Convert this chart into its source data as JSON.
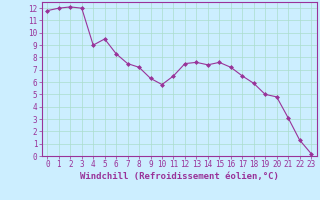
{
  "x": [
    0,
    1,
    2,
    3,
    4,
    5,
    6,
    7,
    8,
    9,
    10,
    11,
    12,
    13,
    14,
    15,
    16,
    17,
    18,
    19,
    20,
    21,
    22,
    23
  ],
  "y": [
    11.8,
    12.0,
    12.1,
    12.0,
    9.0,
    9.5,
    8.3,
    7.5,
    7.2,
    6.3,
    5.8,
    6.5,
    7.5,
    7.6,
    7.4,
    7.6,
    7.2,
    6.5,
    5.9,
    5.0,
    4.8,
    3.1,
    1.3,
    0.2
  ],
  "xlabel": "Windchill (Refroidissement éolien,°C)",
  "xlim": [
    -0.5,
    23.5
  ],
  "ylim": [
    0,
    12.5
  ],
  "yticks": [
    0,
    1,
    2,
    3,
    4,
    5,
    6,
    7,
    8,
    9,
    10,
    11,
    12
  ],
  "xticks": [
    0,
    1,
    2,
    3,
    4,
    5,
    6,
    7,
    8,
    9,
    10,
    11,
    12,
    13,
    14,
    15,
    16,
    17,
    18,
    19,
    20,
    21,
    22,
    23
  ],
  "line_color": "#993399",
  "marker": "D",
  "marker_size": 2,
  "bg_color": "#cceeff",
  "grid_color": "#aaddcc",
  "tick_label_color": "#993399",
  "xlabel_color": "#993399",
  "tick_fontsize": 5.5,
  "xlabel_fontsize": 6.5
}
